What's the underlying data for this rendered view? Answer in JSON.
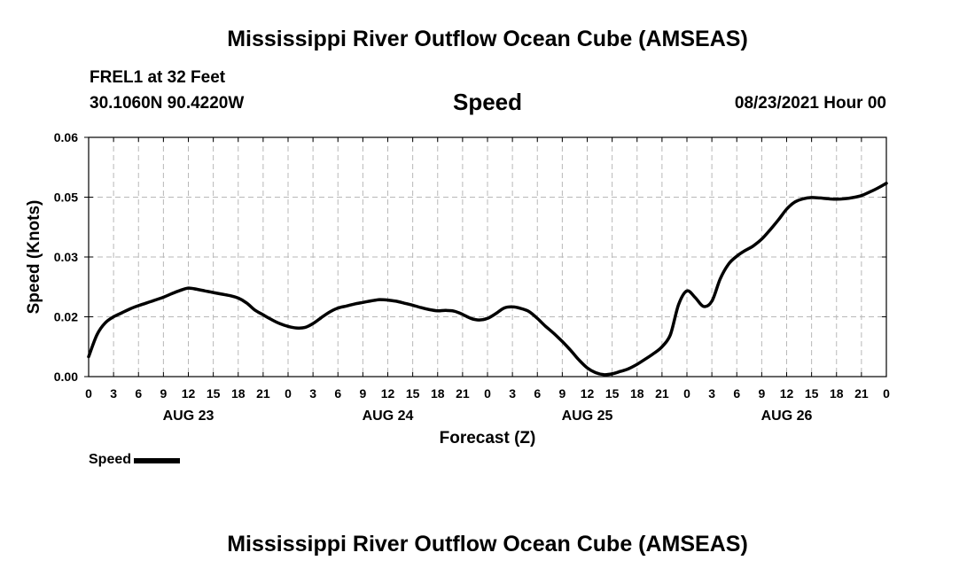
{
  "header": {
    "title": "Mississippi River Outflow Ocean Cube (AMSEAS)",
    "station": "FREL1 at 32 Feet",
    "coordinates": "30.1060N  90.4220W",
    "variable": "Speed",
    "forecast_date": "08/23/2021 Hour 00"
  },
  "footer": {
    "title": "Mississippi River Outflow Ocean Cube (AMSEAS)"
  },
  "legend": {
    "label": "Speed"
  },
  "chart_data": {
    "type": "line",
    "title": "Speed",
    "xlabel": "Forecast (Z)",
    "ylabel": "Speed (Knots)",
    "x_unit": "hours from 08/23/2021 00Z",
    "xlim": [
      0,
      96
    ],
    "ylim": [
      0.0,
      0.06
    ],
    "y_ticks": [
      "0.00",
      "0.02",
      "0.03",
      "0.05",
      "0.06"
    ],
    "y_tick_values": [
      0.0,
      0.015,
      0.03,
      0.045,
      0.06
    ],
    "x_tick_labels": [
      "0",
      "3",
      "6",
      "9",
      "12",
      "15",
      "18",
      "21",
      "0",
      "3",
      "6",
      "9",
      "12",
      "15",
      "18",
      "21",
      "0",
      "3",
      "6",
      "9",
      "12",
      "15",
      "18",
      "21",
      "0",
      "3",
      "6",
      "9",
      "12",
      "15",
      "18",
      "21",
      "0"
    ],
    "day_labels": [
      {
        "label": "AUG 23",
        "hour": 12
      },
      {
        "label": "AUG 24",
        "hour": 36
      },
      {
        "label": "AUG 25",
        "hour": 60
      },
      {
        "label": "AUG 26",
        "hour": 84
      }
    ],
    "grid": true,
    "legend_position": "bottom-left",
    "series": [
      {
        "name": "Speed",
        "color": "#000000",
        "points": [
          [
            0,
            0.005
          ],
          [
            1,
            0.0105
          ],
          [
            2,
            0.0135
          ],
          [
            3,
            0.015
          ],
          [
            4,
            0.016
          ],
          [
            5,
            0.017
          ],
          [
            6,
            0.0178
          ],
          [
            7,
            0.0185
          ],
          [
            8,
            0.0192
          ],
          [
            9,
            0.0199
          ],
          [
            10,
            0.0208
          ],
          [
            11,
            0.0216
          ],
          [
            12,
            0.0222
          ],
          [
            13,
            0.0219
          ],
          [
            14,
            0.0215
          ],
          [
            15,
            0.0211
          ],
          [
            16,
            0.0207
          ],
          [
            17,
            0.0203
          ],
          [
            18,
            0.0197
          ],
          [
            19,
            0.0185
          ],
          [
            20,
            0.0167
          ],
          [
            21,
            0.0155
          ],
          [
            22,
            0.0143
          ],
          [
            23,
            0.0133
          ],
          [
            24,
            0.0126
          ],
          [
            25,
            0.0122
          ],
          [
            26,
            0.0123
          ],
          [
            27,
            0.0133
          ],
          [
            28,
            0.0148
          ],
          [
            29,
            0.0162
          ],
          [
            30,
            0.0172
          ],
          [
            31,
            0.0177
          ],
          [
            32,
            0.0182
          ],
          [
            33,
            0.0186
          ],
          [
            34,
            0.019
          ],
          [
            35,
            0.0193
          ],
          [
            36,
            0.0192
          ],
          [
            37,
            0.0189
          ],
          [
            38,
            0.0184
          ],
          [
            39,
            0.0179
          ],
          [
            40,
            0.0173
          ],
          [
            41,
            0.0168
          ],
          [
            42,
            0.0165
          ],
          [
            43,
            0.0166
          ],
          [
            44,
            0.0164
          ],
          [
            45,
            0.0156
          ],
          [
            46,
            0.0146
          ],
          [
            47,
            0.0142
          ],
          [
            48,
            0.0146
          ],
          [
            49,
            0.0158
          ],
          [
            50,
            0.0172
          ],
          [
            51,
            0.0175
          ],
          [
            52,
            0.0171
          ],
          [
            53,
            0.0163
          ],
          [
            54,
            0.0146
          ],
          [
            55,
            0.0126
          ],
          [
            56,
            0.0108
          ],
          [
            57,
            0.0088
          ],
          [
            58,
            0.0066
          ],
          [
            59,
            0.0042
          ],
          [
            60,
            0.0022
          ],
          [
            61,
            0.001
          ],
          [
            62,
            0.0005
          ],
          [
            63,
            0.0007
          ],
          [
            64,
            0.0013
          ],
          [
            65,
            0.002
          ],
          [
            66,
            0.0031
          ],
          [
            67,
            0.0044
          ],
          [
            68,
            0.0058
          ],
          [
            69,
            0.0075
          ],
          [
            70,
            0.0105
          ],
          [
            71,
            0.0181
          ],
          [
            72,
            0.0215
          ],
          [
            73,
            0.0198
          ],
          [
            74,
            0.0176
          ],
          [
            75,
            0.0189
          ],
          [
            76,
            0.0245
          ],
          [
            77,
            0.0282
          ],
          [
            78,
            0.0302
          ],
          [
            79,
            0.0316
          ],
          [
            80,
            0.0328
          ],
          [
            81,
            0.0345
          ],
          [
            82,
            0.0368
          ],
          [
            83,
            0.0393
          ],
          [
            84,
            0.042
          ],
          [
            85,
            0.0438
          ],
          [
            86,
            0.0446
          ],
          [
            87,
            0.0449
          ],
          [
            88,
            0.0448
          ],
          [
            89,
            0.0446
          ],
          [
            90,
            0.0445
          ],
          [
            91,
            0.0446
          ],
          [
            92,
            0.0449
          ],
          [
            93,
            0.0454
          ],
          [
            94,
            0.0463
          ],
          [
            95,
            0.0473
          ],
          [
            96,
            0.0485
          ]
        ]
      }
    ]
  }
}
